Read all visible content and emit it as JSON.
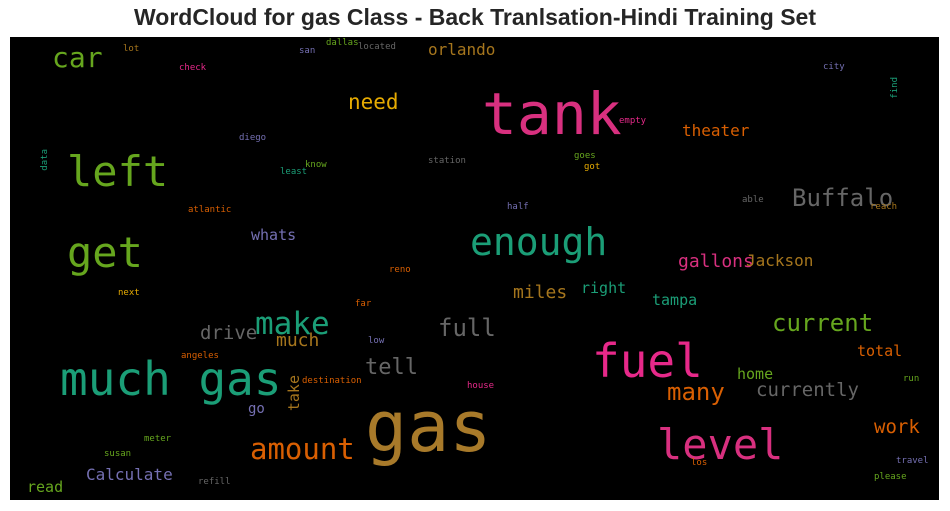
{
  "title": "WordCloud for gas Class - Back Tranlsation-Hindi Training Set",
  "chart_data": {
    "type": "wordcloud",
    "title": "WordCloud for gas Class - Back Tranlsation-Hindi Training Set",
    "background": "#000000",
    "words": [
      {
        "text": "gas",
        "weight": 1.0,
        "color": "#a87a2a"
      },
      {
        "text": "tank",
        "weight": 0.82,
        "color": "#d8307f"
      },
      {
        "text": "much gas",
        "weight": 0.66,
        "color": "#1b9e77"
      },
      {
        "text": "fuel",
        "weight": 0.66,
        "color": "#e7298a"
      },
      {
        "text": "left",
        "weight": 0.6,
        "color": "#66a61e"
      },
      {
        "text": "get",
        "weight": 0.6,
        "color": "#66a61e"
      },
      {
        "text": "level",
        "weight": 0.6,
        "color": "#d8307f"
      },
      {
        "text": "enough",
        "weight": 0.55,
        "color": "#1b9e77"
      },
      {
        "text": "make",
        "weight": 0.45,
        "color": "#1b9e77"
      },
      {
        "text": "amount",
        "weight": 0.42,
        "color": "#d95f02"
      },
      {
        "text": "Buffalo",
        "weight": 0.36,
        "color": "#666666"
      },
      {
        "text": "current",
        "weight": 0.36,
        "color": "#66a61e"
      },
      {
        "text": "car",
        "weight": 0.4,
        "color": "#66a61e"
      },
      {
        "text": "full",
        "weight": 0.36,
        "color": "#666666"
      },
      {
        "text": "tell",
        "weight": 0.32,
        "color": "#666666"
      },
      {
        "text": "many",
        "weight": 0.36,
        "color": "#d95f02"
      },
      {
        "text": "need",
        "weight": 0.3,
        "color": "#e6ab02"
      },
      {
        "text": "currently",
        "weight": 0.28,
        "color": "#666666"
      },
      {
        "text": "drive",
        "weight": 0.28,
        "color": "#666666"
      },
      {
        "text": "work",
        "weight": 0.28,
        "color": "#d95f02"
      },
      {
        "text": "gallons",
        "weight": 0.26,
        "color": "#d8307f"
      },
      {
        "text": "theater",
        "weight": 0.24,
        "color": "#d95f02"
      },
      {
        "text": "miles",
        "weight": 0.26,
        "color": "#a6761d"
      },
      {
        "text": "much",
        "weight": 0.26,
        "color": "#a6761d"
      },
      {
        "text": "Calculate",
        "weight": 0.24,
        "color": "#7570b3"
      },
      {
        "text": "orlando",
        "weight": 0.24,
        "color": "#a6761d"
      },
      {
        "text": "Jackson",
        "weight": 0.24,
        "color": "#a6761d"
      },
      {
        "text": "right",
        "weight": 0.22,
        "color": "#1b9e77"
      },
      {
        "text": "tampa",
        "weight": 0.22,
        "color": "#1b9e77"
      },
      {
        "text": "home",
        "weight": 0.22,
        "color": "#66a61e"
      },
      {
        "text": "total",
        "weight": 0.22,
        "color": "#d95f02"
      },
      {
        "text": "whats",
        "weight": 0.22,
        "color": "#7570b3"
      },
      {
        "text": "read",
        "weight": 0.22,
        "color": "#66a61e"
      },
      {
        "text": "go",
        "weight": 0.2,
        "color": "#7570b3"
      },
      {
        "text": "take",
        "weight": 0.2,
        "color": "#a6761d"
      },
      {
        "text": "lot",
        "weight": 0.1,
        "color": "#a6761d"
      },
      {
        "text": "check",
        "weight": 0.1,
        "color": "#e7298a"
      },
      {
        "text": "san",
        "weight": 0.1,
        "color": "#7570b3"
      },
      {
        "text": "dallas",
        "weight": 0.1,
        "color": "#66a61e"
      },
      {
        "text": "located",
        "weight": 0.1,
        "color": "#666666"
      },
      {
        "text": "city",
        "weight": 0.1,
        "color": "#7570b3"
      },
      {
        "text": "find",
        "weight": 0.1,
        "color": "#1b9e77"
      },
      {
        "text": "diego",
        "weight": 0.1,
        "color": "#7570b3"
      },
      {
        "text": "empty",
        "weight": 0.1,
        "color": "#e7298a"
      },
      {
        "text": "data",
        "weight": 0.1,
        "color": "#1b9e77"
      },
      {
        "text": "know",
        "weight": 0.1,
        "color": "#66a61e"
      },
      {
        "text": "least",
        "weight": 0.1,
        "color": "#1b9e77"
      },
      {
        "text": "station",
        "weight": 0.1,
        "color": "#666666"
      },
      {
        "text": "goes",
        "weight": 0.1,
        "color": "#66a61e"
      },
      {
        "text": "got",
        "weight": 0.1,
        "color": "#e6ab02"
      },
      {
        "text": "able",
        "weight": 0.1,
        "color": "#666666"
      },
      {
        "text": "reach",
        "weight": 0.1,
        "color": "#a6761d"
      },
      {
        "text": "atlantic",
        "weight": 0.1,
        "color": "#d95f02"
      },
      {
        "text": "half",
        "weight": 0.1,
        "color": "#7570b3"
      },
      {
        "text": "reno",
        "weight": 0.1,
        "color": "#d95f02"
      },
      {
        "text": "next",
        "weight": 0.1,
        "color": "#e6ab02"
      },
      {
        "text": "far",
        "weight": 0.1,
        "color": "#d95f02"
      },
      {
        "text": "low",
        "weight": 0.1,
        "color": "#7570b3"
      },
      {
        "text": "angeles",
        "weight": 0.1,
        "color": "#d95f02"
      },
      {
        "text": "destination",
        "weight": 0.1,
        "color": "#d95f02"
      },
      {
        "text": "house",
        "weight": 0.1,
        "color": "#e7298a"
      },
      {
        "text": "run",
        "weight": 0.1,
        "color": "#66a61e"
      },
      {
        "text": "meter",
        "weight": 0.1,
        "color": "#66a61e"
      },
      {
        "text": "susan",
        "weight": 0.1,
        "color": "#66a61e"
      },
      {
        "text": "refill",
        "weight": 0.1,
        "color": "#666666"
      },
      {
        "text": "los",
        "weight": 0.1,
        "color": "#d95f02"
      },
      {
        "text": "travel",
        "weight": 0.1,
        "color": "#7570b3"
      },
      {
        "text": "please",
        "weight": 0.1,
        "color": "#66a61e"
      }
    ]
  }
}
